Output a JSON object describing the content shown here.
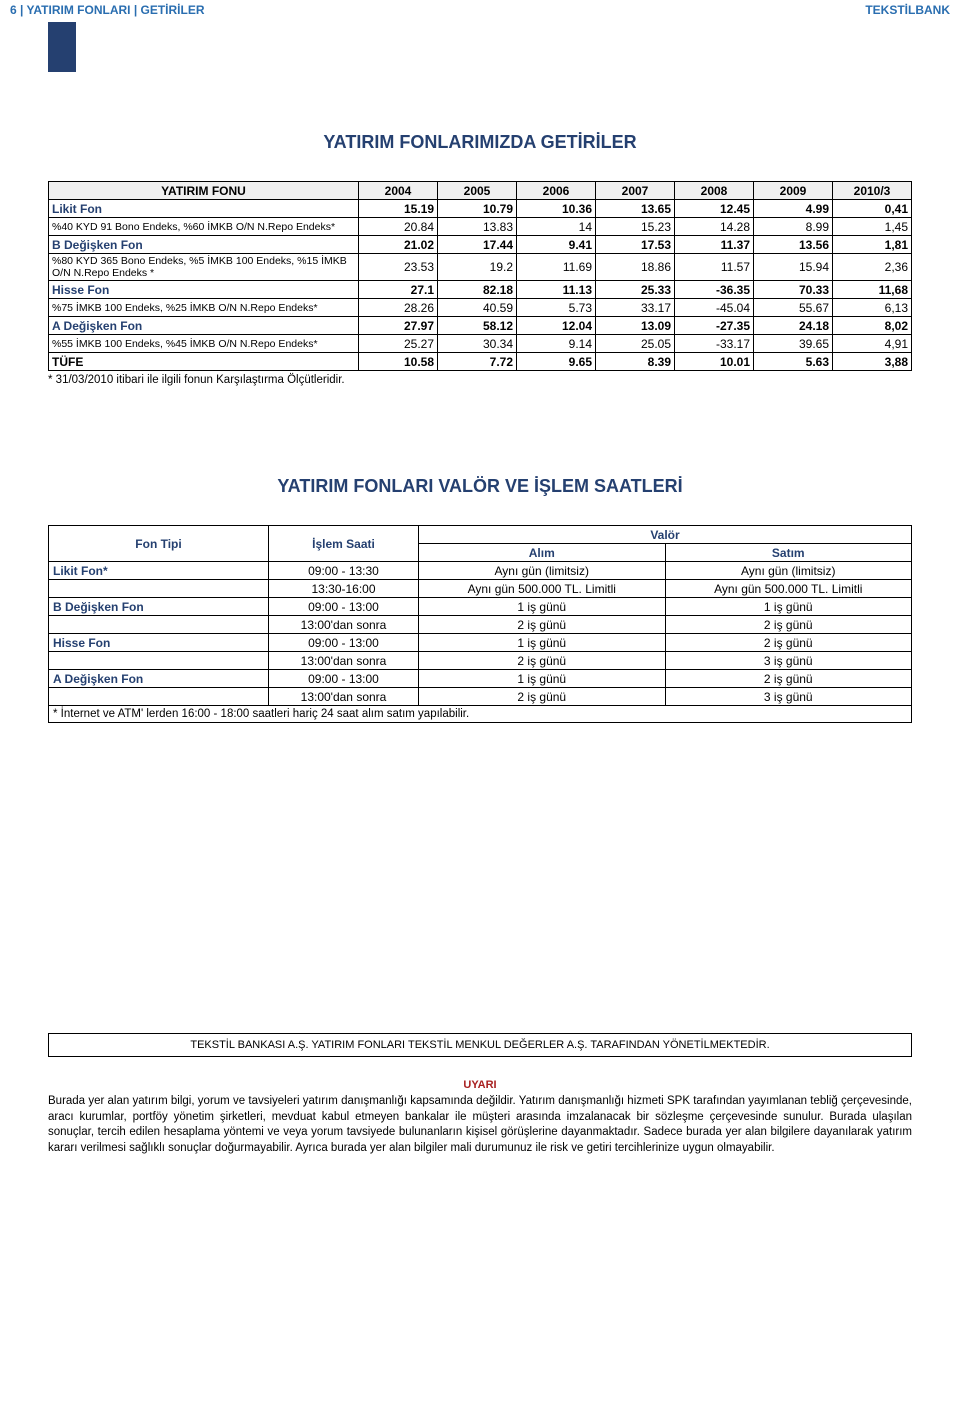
{
  "header": {
    "left": "6 | YATIRIM FONLARI | GETİRİLER",
    "right": "TEKSTİLBANK"
  },
  "section1_title": "YATIRIM FONLARIMIZDA GETİRİLER",
  "returns": {
    "col0": "YATIRIM FONU",
    "years": [
      "2004",
      "2005",
      "2006",
      "2007",
      "2008",
      "2009",
      "2010/3"
    ],
    "rows": [
      {
        "type": "fund",
        "label": "Likit Fon",
        "vals": [
          "15.19",
          "10.79",
          "10.36",
          "13.65",
          "12.45",
          "4.99",
          "0,41"
        ]
      },
      {
        "type": "sub",
        "label": "%40 KYD 91 Bono Endeks, %60 İMKB O/N N.Repo Endeks*",
        "vals": [
          "20.84",
          "13.83",
          "14",
          "15.23",
          "14.28",
          "8.99",
          "1,45"
        ]
      },
      {
        "type": "fund",
        "label": "B Değişken Fon",
        "vals": [
          "21.02",
          "17.44",
          "9.41",
          "17.53",
          "11.37",
          "13.56",
          "1,81"
        ]
      },
      {
        "type": "sub",
        "label": "%80 KYD 365 Bono Endeks, %5 İMKB 100 Endeks, %15 İMKB O/N N.Repo Endeks *",
        "vals": [
          "23.53",
          "19.2",
          "11.69",
          "18.86",
          "11.57",
          "15.94",
          "2,36"
        ]
      },
      {
        "type": "fund",
        "label": "Hisse Fon",
        "vals": [
          "27.1",
          "82.18",
          "11.13",
          "25.33",
          "-36.35",
          "70.33",
          "11,68"
        ]
      },
      {
        "type": "sub",
        "label": "%75 İMKB 100 Endeks, %25 İMKB O/N N.Repo Endeks*",
        "vals": [
          "28.26",
          "40.59",
          "5.73",
          "33.17",
          "-45.04",
          "55.67",
          "6,13"
        ]
      },
      {
        "type": "fund",
        "label": "A Değişken Fon",
        "vals": [
          "27.97",
          "58.12",
          "12.04",
          "13.09",
          "-27.35",
          "24.18",
          "8,02"
        ]
      },
      {
        "type": "sub",
        "label": "%55 İMKB 100 Endeks, %45 İMKB O/N N.Repo Endeks*",
        "vals": [
          "25.27",
          "30.34",
          "9.14",
          "25.05",
          "-33.17",
          "39.65",
          "4,91"
        ]
      },
      {
        "type": "tufe",
        "label": "TÜFE",
        "vals": [
          "10.58",
          "7.72",
          "9.65",
          "8.39",
          "10.01",
          "5.63",
          "3,88"
        ]
      }
    ],
    "footnote": "* 31/03/2010 itibari ile ilgili fonun Karşılaştırma Ölçütleridir."
  },
  "section2_title": "YATIRIM FONLARI VALÖR VE İŞLEM SAATLERİ",
  "valor": {
    "h_fon": "Fon Tipi",
    "h_islem": "İşlem Saati",
    "h_valor": "Valör",
    "h_alim": "Alım",
    "h_satim": "Satım",
    "rows": [
      {
        "fund": "Likit Fon*",
        "time": "09:00 - 13:30",
        "a": "Aynı gün (limitsiz)",
        "s": "Aynı gün (limitsiz)"
      },
      {
        "fund": "",
        "time": "13:30-16:00",
        "a": "Aynı gün 500.000 TL. Limitli",
        "s": "Aynı gün 500.000 TL. Limitli"
      },
      {
        "fund": "B Değişken Fon",
        "time": "09:00 - 13:00",
        "a": "1 iş günü",
        "s": "1 iş günü"
      },
      {
        "fund": "",
        "time": "13:00'dan sonra",
        "a": "2 iş günü",
        "s": "2 iş günü"
      },
      {
        "fund": "Hisse Fon",
        "time": "09:00 - 13:00",
        "a": "1 iş günü",
        "s": "2 iş günü"
      },
      {
        "fund": "",
        "time": "13:00'dan sonra",
        "a": "2 iş günü",
        "s": "3 iş günü"
      },
      {
        "fund": "A Değişken Fon",
        "time": "09:00 - 13:00",
        "a": "1 iş günü",
        "s": "2 iş günü"
      },
      {
        "fund": "",
        "time": "13:00'dan sonra",
        "a": "2 iş günü",
        "s": "3 iş günü"
      }
    ],
    "footnote": "* İnternet ve ATM' lerden 16:00 - 18:00 saatleri hariç 24 saat alım satım yapılabilir."
  },
  "mgmt": "TEKSTİL BANKASI A.Ş. YATIRIM FONLARI TEKSTİL MENKUL DEĞERLER A.Ş. TARAFINDAN YÖNETİLMEKTEDİR.",
  "uyari_title": "UYARI",
  "uyari_body": "Burada yer alan yatırım bilgi, yorum ve tavsiyeleri yatırım danışmanlığı kapsamında değildir. Yatırım danışmanlığı hizmeti SPK tarafından yayımlanan tebliğ çerçevesinde, aracı kurumlar, portföy yönetim şirketleri, mevduat kabul etmeyen bankalar ile müşteri arasında imzalanacak bir sözleşme çerçevesinde sunulur. Burada ulaşılan sonuçlar, tercih edilen hesaplama yöntemi ve veya yorum tavsiyede bulunanların kişisel görüşlerine dayanmaktadır. Sadece burada yer alan bilgilere dayanılarak yatırım kararı verilmesi sağlıklı sonuçlar doğurmayabilir. Ayrıca burada yer alan bilgiler mali durumunuz ile risk ve getiri tercihlerinize uygun olmayabilir."
}
